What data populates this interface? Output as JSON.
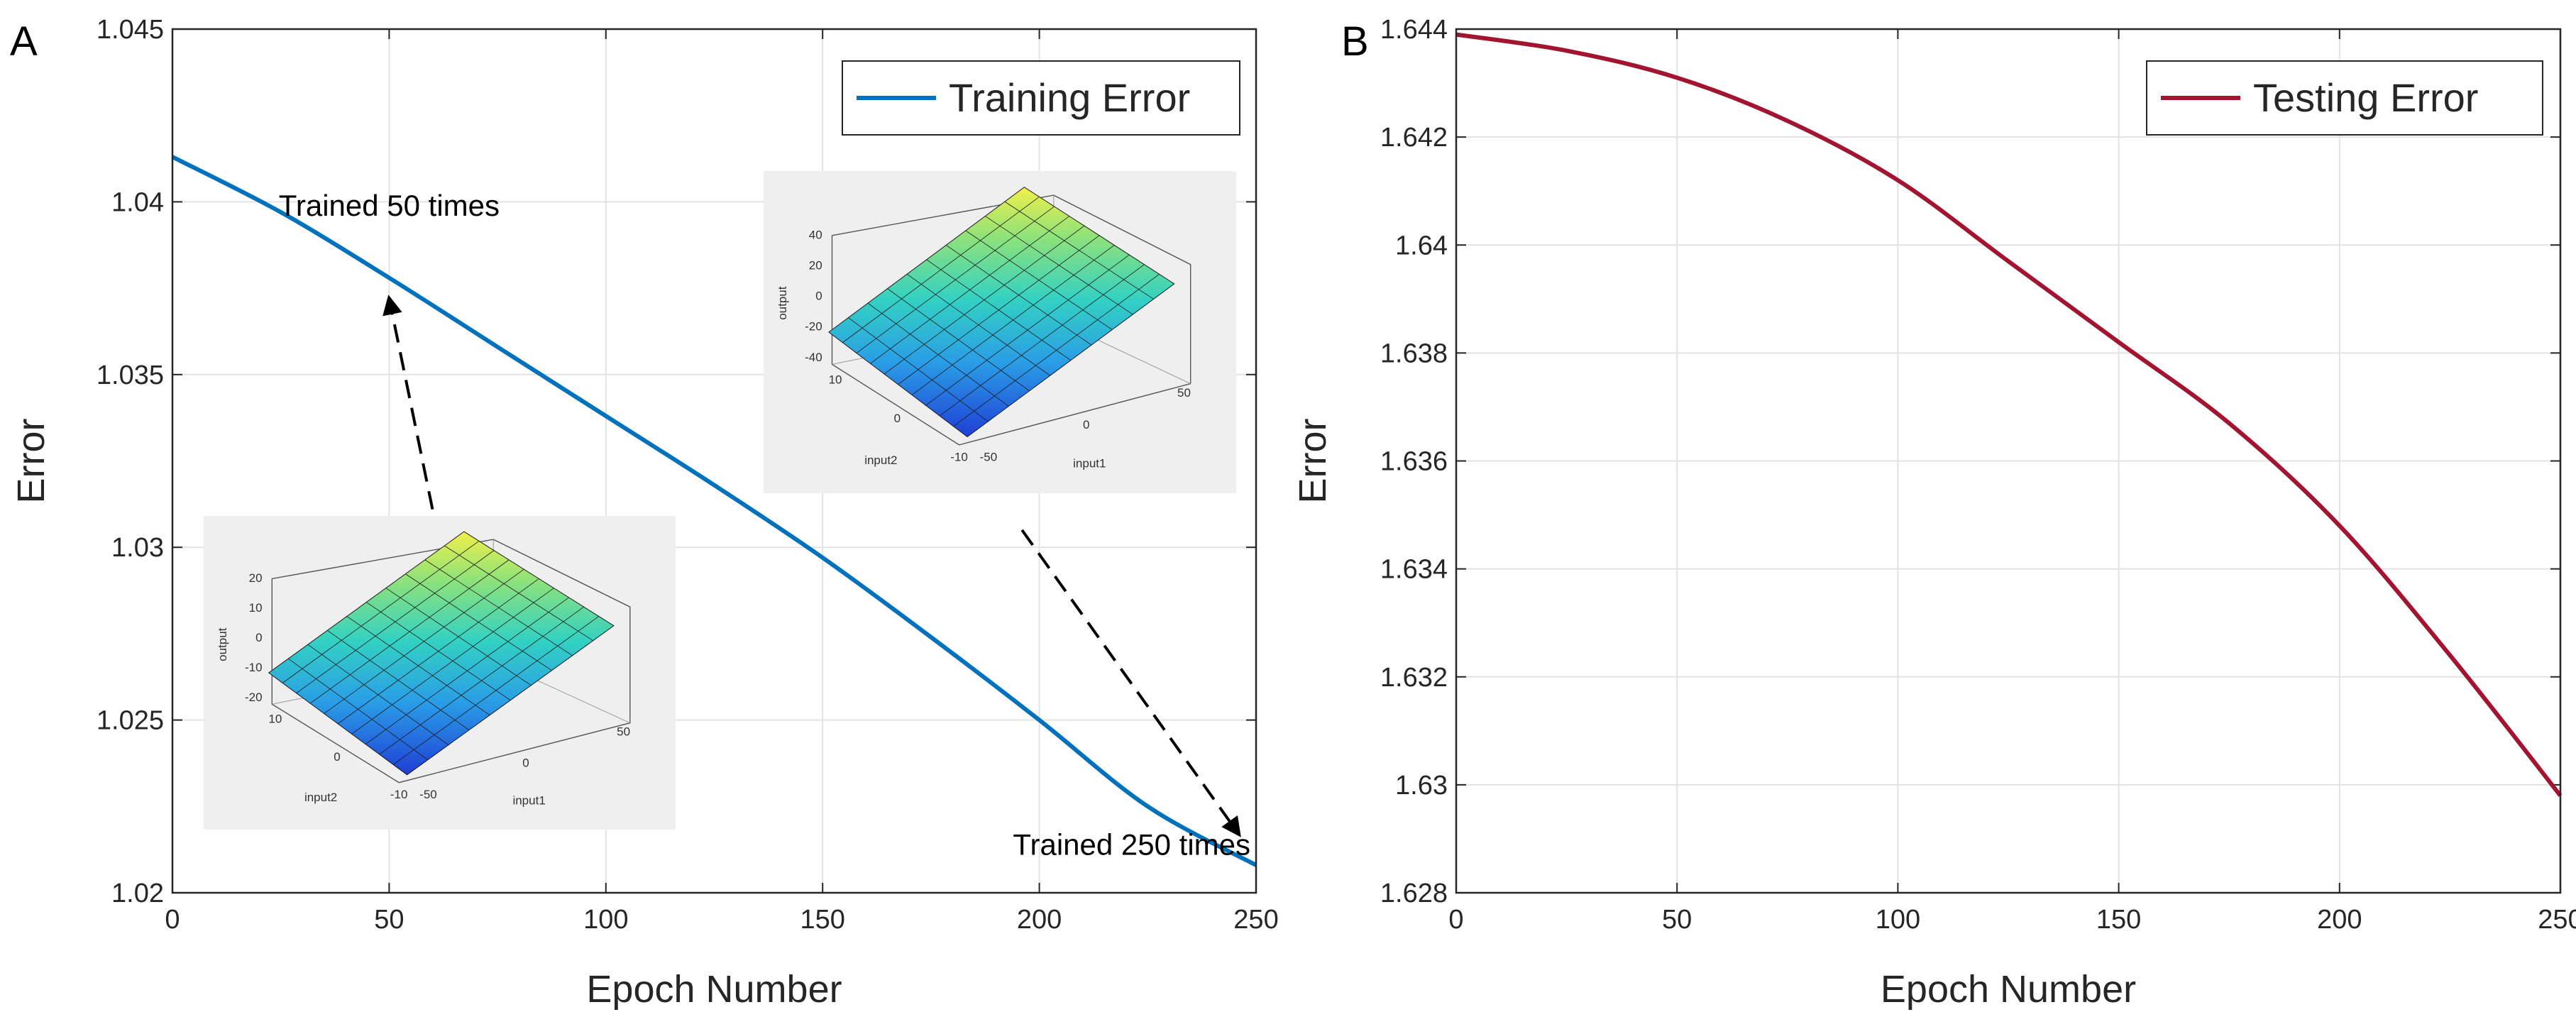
{
  "chart_data": [
    {
      "panel": "A",
      "type": "line",
      "xlabel": "Epoch Number",
      "ylabel": "Error",
      "xlim": [
        0,
        250
      ],
      "ylim": [
        1.02,
        1.045
      ],
      "xticks": [
        0,
        50,
        100,
        150,
        200,
        250
      ],
      "yticks": [
        1.02,
        1.025,
        1.03,
        1.035,
        1.04,
        1.045
      ],
      "ytick_labels": [
        "1.02",
        "1.025",
        "1.03",
        "1.035",
        "1.04",
        "1.045"
      ],
      "grid": true,
      "legend_position": "top-right",
      "series": [
        {
          "name": "Training Error",
          "color": "#0072BD",
          "x": [
            0,
            25,
            50,
            75,
            100,
            125,
            150,
            175,
            200,
            225,
            250
          ],
          "values": [
            1.0413,
            1.0397,
            1.0378,
            1.0358,
            1.0338,
            1.0318,
            1.0297,
            1.0274,
            1.025,
            1.0225,
            1.0208
          ]
        }
      ],
      "annotations": [
        {
          "text": "Trained 50 times",
          "x": 50,
          "y": 1.0396
        },
        {
          "text": "Trained 250 times",
          "x": 250,
          "y": 1.0211
        }
      ],
      "arrows": [
        {
          "from": [
            60,
            1.0311
          ],
          "to": [
            50,
            1.0372
          ]
        },
        {
          "from": [
            196,
            1.0305
          ],
          "to": [
            246,
            1.0217
          ]
        }
      ],
      "insets": [
        {
          "name": "inset-50",
          "zlabel": "output",
          "xlabel": "input1",
          "ylabel": "input2",
          "z_ticks": [
            "20",
            "10",
            "0",
            "-10",
            "-20"
          ],
          "input2_ticks": [
            "10",
            "0",
            "-10"
          ],
          "input1_ticks": [
            "-50",
            "0",
            "50"
          ]
        },
        {
          "name": "inset-250",
          "zlabel": "output",
          "xlabel": "input1",
          "ylabel": "input2",
          "z_ticks": [
            "40",
            "20",
            "0",
            "-20",
            "-40"
          ],
          "input2_ticks": [
            "10",
            "0",
            "-10"
          ],
          "input1_ticks": [
            "-50",
            "0",
            "50"
          ]
        }
      ]
    },
    {
      "panel": "B",
      "type": "line",
      "xlabel": "Epoch Number",
      "ylabel": "Error",
      "xlim": [
        0,
        250
      ],
      "ylim": [
        1.628,
        1.644
      ],
      "xticks": [
        0,
        50,
        100,
        150,
        200,
        250
      ],
      "yticks": [
        1.628,
        1.63,
        1.632,
        1.634,
        1.636,
        1.638,
        1.64,
        1.642,
        1.644
      ],
      "ytick_labels": [
        "1.628",
        "1.63",
        "1.632",
        "1.634",
        "1.636",
        "1.638",
        "1.64",
        "1.642",
        "1.644"
      ],
      "grid": true,
      "legend_position": "top-right",
      "series": [
        {
          "name": "Testing Error",
          "color": "#A2142F",
          "x": [
            0,
            25,
            50,
            75,
            100,
            125,
            150,
            175,
            200,
            225,
            250
          ],
          "values": [
            1.6439,
            1.6436,
            1.6431,
            1.6423,
            1.6412,
            1.6397,
            1.6382,
            1.6367,
            1.6348,
            1.6324,
            1.6298
          ]
        }
      ]
    }
  ]
}
